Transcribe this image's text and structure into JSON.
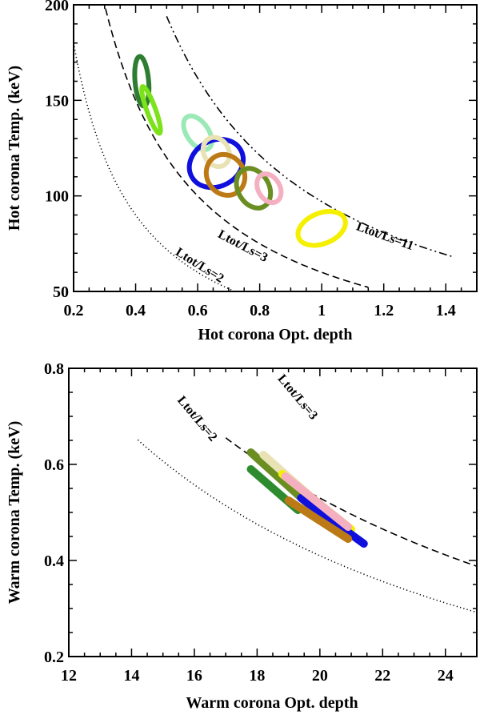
{
  "chart_data": [
    {
      "type": "scatter",
      "title": "",
      "xlabel": "Hot corona Opt. depth",
      "ylabel": "Hot corona Temp. (keV)",
      "xlim": [
        0.2,
        1.5
      ],
      "ylim": [
        50,
        200
      ],
      "xticks": [
        0.2,
        0.4,
        0.6,
        0.8,
        1.0,
        1.2,
        1.4
      ],
      "xtick_labels": [
        "0.2",
        "0.4",
        "0.6",
        "0.8",
        "1",
        "1.2",
        "1.4"
      ],
      "yticks": [
        50,
        100,
        150,
        200
      ],
      "ytick_labels": [
        "50",
        "100",
        "150",
        "200"
      ],
      "curves": [
        {
          "name": "Ltot/Ls=2",
          "label": "Ltot/Ls=2",
          "style": "dotted",
          "k": 36,
          "x_range": [
            0.2,
            0.73
          ],
          "label_at": [
            0.6,
            62
          ],
          "label_angle": 32
        },
        {
          "name": "Ltot/Ls=3",
          "label": "Ltot/Ls=3",
          "style": "dashed",
          "k": 60,
          "x_range": [
            0.27,
            1.15
          ],
          "label_at": [
            0.74,
            72
          ],
          "label_angle": 28
        },
        {
          "name": "Ltot/Ls=11",
          "label": "Ltot/Ls=11",
          "style": "dashdot",
          "k": 97,
          "x_range": [
            0.5,
            1.42
          ],
          "label_at": [
            1.2,
            77
          ],
          "label_angle": 20
        }
      ],
      "contours": [
        {
          "name": "dark green",
          "color": "#2e7d32",
          "x": 0.42,
          "y": 160,
          "rx": 0.022,
          "ry": 13,
          "rot": -5
        },
        {
          "name": "light green",
          "color": "#7ce31a",
          "x": 0.45,
          "y": 145,
          "rx": 0.014,
          "ry": 13,
          "rot": -20
        },
        {
          "name": "aquamarine",
          "color": "#9be9b6",
          "x": 0.6,
          "y": 133,
          "rx": 0.035,
          "ry": 10,
          "rot": -35
        },
        {
          "name": "blue",
          "color": "#1010dd",
          "x": 0.66,
          "y": 117,
          "rx": 0.09,
          "ry": 12,
          "rot": -28
        },
        {
          "name": "beige",
          "color": "#e9e2b4",
          "x": 0.66,
          "y": 123,
          "rx": 0.04,
          "ry": 8,
          "rot": -30
        },
        {
          "name": "dark goldenrod",
          "color": "#bc7a16",
          "x": 0.69,
          "y": 111,
          "rx": 0.06,
          "ry": 11,
          "rot": -32
        },
        {
          "name": "olive",
          "color": "#6b8e23",
          "x": 0.78,
          "y": 104,
          "rx": 0.05,
          "ry": 11,
          "rot": -30
        },
        {
          "name": "pink",
          "color": "#f4b0c0",
          "x": 0.83,
          "y": 104,
          "rx": 0.035,
          "ry": 8,
          "rot": -30
        },
        {
          "name": "yellow",
          "color": "#f5ef00",
          "x": 1.0,
          "y": 83,
          "rx": 0.08,
          "ry": 8,
          "rot": -22
        }
      ]
    },
    {
      "type": "scatter",
      "title": "",
      "xlabel": "Warm corona Opt. depth",
      "ylabel": "Warm corona Temp. (keV)",
      "xlim": [
        12,
        25
      ],
      "ylim": [
        0.2,
        0.8
      ],
      "xticks": [
        12,
        14,
        16,
        18,
        20,
        22,
        24
      ],
      "xtick_labels": [
        "12",
        "14",
        "16",
        "18",
        "20",
        "22",
        "24"
      ],
      "yticks": [
        0.2,
        0.4,
        0.6,
        0.8
      ],
      "ytick_labels": [
        "0.2",
        "0.4",
        "0.6",
        "0.8"
      ],
      "curves": [
        {
          "name": "Ltot/Ls=2",
          "label": "Ltot/Ls=2",
          "style": "dotted",
          "a": 11.8,
          "x_range": [
            14.2,
            25
          ],
          "label_at": [
            16,
            0.69
          ],
          "label_angle": 50
        },
        {
          "name": "Ltot/Ls=3",
          "label": "Ltot/Ls=3",
          "style": "dashed",
          "a": 14.2,
          "x_range": [
            17.0,
            25
          ],
          "label_at": [
            19.2,
            0.735
          ],
          "label_angle": 50
        }
      ],
      "bands": [
        {
          "name": "dark green",
          "color": "#2e8b2e",
          "from": [
            17.8,
            0.59
          ],
          "to": [
            19.3,
            0.505
          ]
        },
        {
          "name": "olive",
          "color": "#6b8e23",
          "from": [
            17.8,
            0.625
          ],
          "to": [
            20.6,
            0.46
          ]
        },
        {
          "name": "beige",
          "color": "#e9e2b4",
          "from": [
            18.2,
            0.62
          ],
          "to": [
            20.8,
            0.47
          ]
        },
        {
          "name": "yellow",
          "color": "#f5ef00",
          "from": [
            18.8,
            0.58
          ],
          "to": [
            21.0,
            0.465
          ]
        },
        {
          "name": "blue",
          "color": "#1010dd",
          "from": [
            19.4,
            0.53
          ],
          "to": [
            21.4,
            0.435
          ]
        },
        {
          "name": "pink",
          "color": "#f4b0c0",
          "from": [
            18.9,
            0.575
          ],
          "to": [
            20.9,
            0.47
          ]
        },
        {
          "name": "dark goldenrod",
          "color": "#bc7a16",
          "from": [
            19.0,
            0.525
          ],
          "to": [
            20.9,
            0.445
          ]
        }
      ]
    }
  ]
}
